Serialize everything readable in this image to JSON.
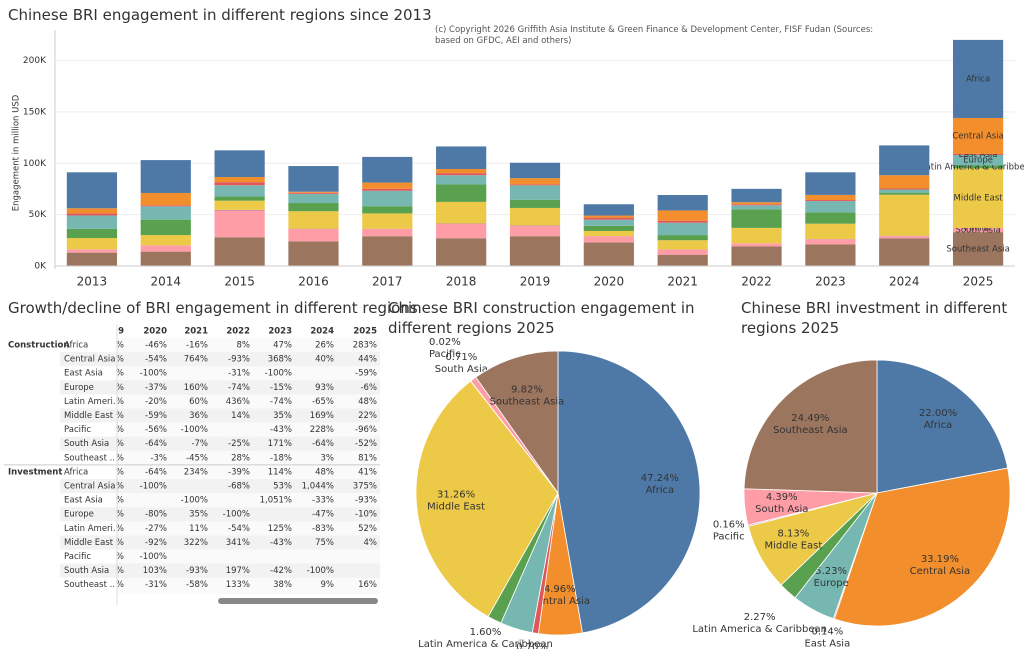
{
  "chart_data": [
    {
      "type": "bar",
      "stacked": true,
      "title": "Chinese BRI engagement in different regions since 2013",
      "subtitle": "(c) Copyright 2026 Griffith Asia Institute & Green Finance & Development Center, FISF Fudan (Sources: based on GFDC, AEI and others)",
      "y_label": "Engagement in million USD",
      "categories": [
        "2013",
        "2014",
        "2015",
        "2016",
        "2017",
        "2018",
        "2019",
        "2020",
        "2021",
        "2022",
        "2023",
        "2024",
        "2025"
      ],
      "ylim": [
        0,
        220000
      ],
      "yticks": [
        {
          "value": 0,
          "label": "0K"
        },
        {
          "value": 50000,
          "label": "50K"
        },
        {
          "value": 100000,
          "label": "100K"
        },
        {
          "value": 150000,
          "label": "150K"
        },
        {
          "value": 200000,
          "label": "200K"
        }
      ],
      "grid": true,
      "series": [
        {
          "name": "Southeast Asia",
          "color": "#9c755f",
          "values": [
            13000,
            14000,
            28000,
            24000,
            29000,
            27000,
            29000,
            23000,
            11000,
            19000,
            21000,
            27000,
            33000
          ]
        },
        {
          "name": "South Asia",
          "color": "#ff9da7",
          "values": [
            3000,
            6000,
            26000,
            12000,
            7000,
            14000,
            10000,
            6000,
            5000,
            3000,
            5000,
            2000,
            4000
          ]
        },
        {
          "name": "Pacific",
          "color": "#b07aa1",
          "values": [
            200,
            100,
            600,
            300,
            200,
            400,
            500,
            100,
            100,
            100,
            200,
            400,
            100
          ]
        },
        {
          "name": "Middle East",
          "color": "#edc948",
          "values": [
            11000,
            10000,
            9000,
            17000,
            15000,
            21000,
            17000,
            5000,
            9000,
            15000,
            15000,
            40000,
            58000
          ]
        },
        {
          "name": "Latin America & Caribbean",
          "color": "#59a14f",
          "values": [
            9000,
            15000,
            4000,
            8000,
            7000,
            17000,
            8000,
            5000,
            5000,
            18000,
            11000,
            2000,
            3000
          ]
        },
        {
          "name": "Europe",
          "color": "#76b7b2",
          "values": [
            13000,
            13000,
            11000,
            9000,
            15000,
            9000,
            14000,
            6000,
            12000,
            4000,
            11000,
            3000,
            10000
          ]
        },
        {
          "name": "East Asia",
          "color": "#e15759",
          "values": [
            2000,
            1000,
            3000,
            1000,
            2000,
            2000,
            1000,
            2000,
            2000,
            1000,
            1000,
            1000,
            1000
          ]
        },
        {
          "name": "Central Asia",
          "color": "#f28e2b",
          "values": [
            5000,
            12000,
            5000,
            1000,
            6000,
            4000,
            6000,
            2000,
            10000,
            2000,
            5000,
            13000,
            35000
          ]
        },
        {
          "name": "Africa",
          "color": "#4e79a7",
          "values": [
            35000,
            32000,
            26000,
            25000,
            25000,
            22000,
            15000,
            11000,
            15000,
            13000,
            22000,
            29000,
            76000
          ]
        }
      ]
    },
    {
      "type": "pie",
      "title": "Chinese BRI construction engagement in different regions 2025",
      "categories": [
        "Africa",
        "Central Asia",
        "East Asia",
        "Europe",
        "Latin America & Caribbean",
        "Middle East",
        "Pacific",
        "South Asia",
        "Southeast Asia"
      ],
      "values": [
        47.24,
        4.96,
        0.7,
        3.68,
        1.6,
        31.26,
        0.02,
        0.71,
        9.82
      ],
      "value_labels": [
        "47.24%",
        "4.96%",
        "0.70%",
        "3.68%",
        "1.60%",
        "31.26%",
        "0.02%",
        "0.71%",
        "9.82%"
      ],
      "colors": [
        "#4e79a7",
        "#f28e2b",
        "#e15759",
        "#76b7b2",
        "#59a14f",
        "#edc948",
        "#b07aa1",
        "#ff9da7",
        "#9c755f"
      ]
    },
    {
      "type": "pie",
      "title": "Chinese BRI investment in different regions 2025",
      "categories": [
        "Africa",
        "Central Asia",
        "East Asia",
        "Europe",
        "Latin America & Caribbean",
        "Middle East",
        "Pacific",
        "South Asia",
        "Southeast Asia"
      ],
      "values": [
        22.0,
        33.19,
        0.14,
        5.23,
        2.27,
        8.13,
        0.16,
        4.39,
        24.49
      ],
      "value_labels": [
        "22.00%",
        "33.19%",
        "0.14%",
        "5.23%",
        "2.27%",
        "8.13%",
        "0.16%",
        "4.39%",
        "24.49%"
      ],
      "colors": [
        "#4e79a7",
        "#f28e2b",
        "#e15759",
        "#76b7b2",
        "#59a14f",
        "#edc948",
        "#b07aa1",
        "#ff9da7",
        "#9c755f"
      ]
    }
  ],
  "table": {
    "title": "Growth/decline of BRI engagement in different regions",
    "columns": [
      "9",
      "2020",
      "2021",
      "2022",
      "2023",
      "2024",
      "2025"
    ],
    "groups": [
      {
        "name": "Construction",
        "rows": [
          {
            "label": "Africa",
            "cells": [
              "%",
              "-46%",
              "-16%",
              "8%",
              "47%",
              "26%",
              "283%"
            ]
          },
          {
            "label": "Central Asia",
            "cells": [
              "%",
              "-54%",
              "764%",
              "-93%",
              "368%",
              "40%",
              "44%"
            ]
          },
          {
            "label": "East Asia",
            "cells": [
              "%",
              "-100%",
              null,
              "-31%",
              "-100%",
              null,
              "-59%"
            ]
          },
          {
            "label": "Europe",
            "cells": [
              "%",
              "-37%",
              "160%",
              "-74%",
              "-15%",
              "93%",
              "-6%"
            ]
          },
          {
            "label": "Latin Ameri..",
            "cells": [
              "%",
              "-20%",
              "60%",
              "436%",
              "-74%",
              "-65%",
              "48%"
            ]
          },
          {
            "label": "Middle East",
            "cells": [
              "%",
              "-59%",
              "36%",
              "14%",
              "35%",
              "169%",
              "22%"
            ]
          },
          {
            "label": "Pacific",
            "cells": [
              "%",
              "-56%",
              "-100%",
              null,
              "-43%",
              "228%",
              "-96%"
            ]
          },
          {
            "label": "South Asia",
            "cells": [
              "%",
              "-64%",
              "-7%",
              "-25%",
              "171%",
              "-64%",
              "-52%"
            ]
          },
          {
            "label": "Southeast ..",
            "cells": [
              "%",
              "-3%",
              "-45%",
              "28%",
              "-18%",
              "3%",
              "81%"
            ]
          }
        ]
      },
      {
        "name": "Investment",
        "rows": [
          {
            "label": "Africa",
            "cells": [
              "%",
              "-64%",
              "234%",
              "-39%",
              "114%",
              "48%",
              "41%"
            ]
          },
          {
            "label": "Central Asia",
            "cells": [
              "%",
              "-100%",
              null,
              "-68%",
              "53%",
              "1,044%",
              "375%"
            ]
          },
          {
            "label": "East Asia",
            "cells": [
              "%",
              null,
              "-100%",
              null,
              "1,051%",
              "-33%",
              "-93%"
            ]
          },
          {
            "label": "Europe",
            "cells": [
              "%",
              "-80%",
              "35%",
              "-100%",
              null,
              "-47%",
              "-10%"
            ]
          },
          {
            "label": "Latin Ameri..",
            "cells": [
              "%",
              "-27%",
              "11%",
              "-54%",
              "125%",
              "-83%",
              "52%"
            ]
          },
          {
            "label": "Middle East",
            "cells": [
              "%",
              "-92%",
              "322%",
              "341%",
              "-43%",
              "75%",
              "4%"
            ]
          },
          {
            "label": "Pacific",
            "cells": [
              "%",
              "-100%",
              null,
              null,
              null,
              null,
              null
            ]
          },
          {
            "label": "South Asia",
            "cells": [
              "%",
              "103%",
              "-93%",
              "197%",
              "-42%",
              "-100%",
              null
            ]
          },
          {
            "label": "Southeast ..",
            "cells": [
              "%",
              "-31%",
              "-58%",
              "133%",
              "38%",
              "9%",
              "16%"
            ]
          }
        ]
      }
    ]
  }
}
